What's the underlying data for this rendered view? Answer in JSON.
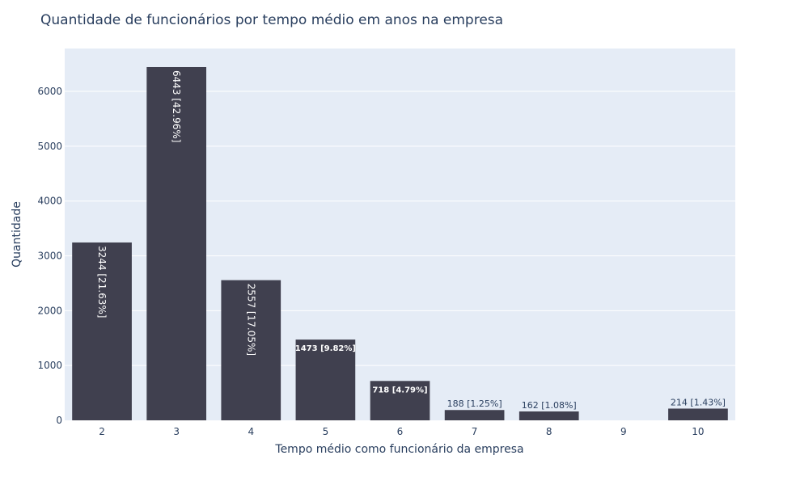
{
  "chart_data": {
    "type": "bar",
    "title": "Quantidade de funcionários por tempo médio em anos na empresa",
    "xlabel": "Tempo médio como funcionário da empresa",
    "ylabel": "Quantidade",
    "categories": [
      2,
      3,
      4,
      5,
      6,
      7,
      8,
      9,
      10
    ],
    "values": [
      3244,
      6443,
      2557,
      1473,
      718,
      188,
      162,
      0,
      214
    ],
    "data_labels": [
      "3244 [21.63%]",
      "6443 [42.96%]",
      "2557 [17.05%]",
      "1473 [9.82%]",
      "718 [4.79%]",
      "188 [1.25%]",
      "162 [1.08%]",
      "",
      "214 [1.43%]"
    ],
    "ylim": [
      0,
      6782
    ],
    "yticks": [
      0,
      1000,
      2000,
      3000,
      4000,
      5000,
      6000
    ],
    "grid": true,
    "colors": {
      "bar": "#40404f",
      "plot_bg": "#e5ecf6",
      "grid": "#ffffff",
      "text": "#2a3f5f"
    }
  }
}
